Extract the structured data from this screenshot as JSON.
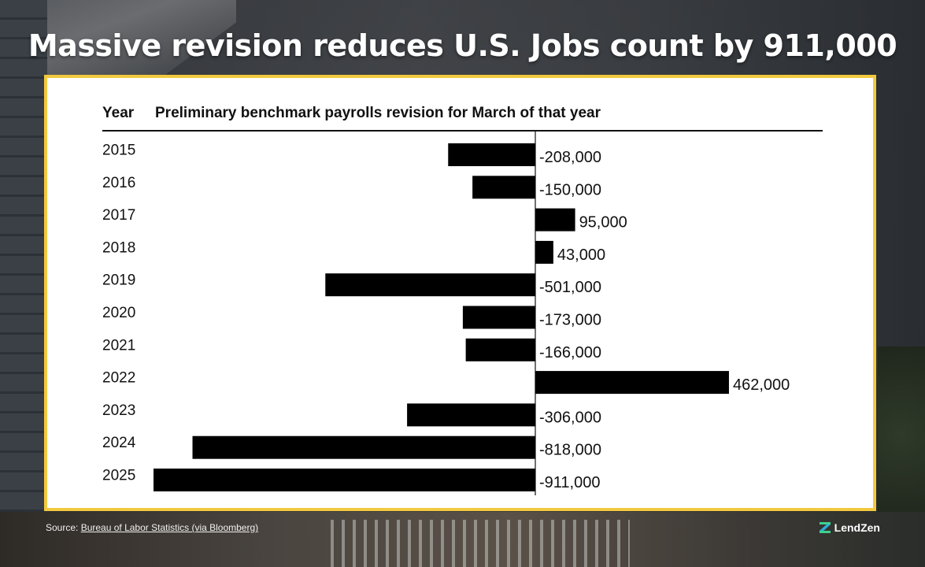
{
  "headline": "Massive revision reduces U.S. Jobs count by 911,000",
  "chart_data": {
    "type": "bar",
    "orientation": "horizontal",
    "header_year": "Year",
    "title": "Preliminary benchmark payrolls revision for March of that year",
    "categories": [
      "2015",
      "2016",
      "2017",
      "2018",
      "2019",
      "2020",
      "2021",
      "2022",
      "2023",
      "2024",
      "2025"
    ],
    "values": [
      -208000,
      -150000,
      95000,
      43000,
      -501000,
      -173000,
      -166000,
      462000,
      -306000,
      -818000,
      -911000
    ],
    "value_labels": [
      "-208,000",
      "-150,000",
      "95,000",
      "43,000",
      "-501,000",
      "-173,000",
      "-166,000",
      "462,000",
      "-306,000",
      "-818,000",
      "-911,000"
    ],
    "bar_color": "#000000"
  },
  "source": {
    "prefix": "Source: ",
    "link_text": "Bureau of Labor Statistics (via Bloomberg)"
  },
  "brand": {
    "name": "LendZen",
    "logo_colors": [
      "#3fcf8e",
      "#2aa8e0"
    ]
  },
  "colors": {
    "frame": "#f2c93e",
    "headline": "#ffffff"
  }
}
